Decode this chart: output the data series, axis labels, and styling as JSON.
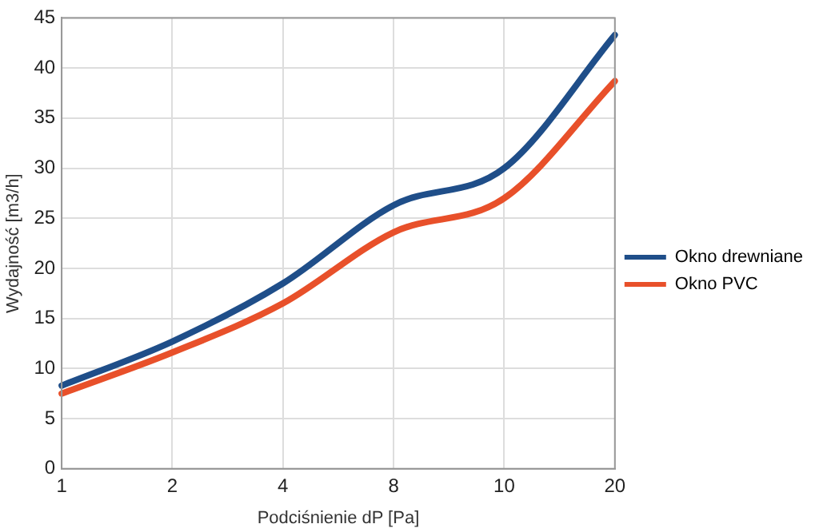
{
  "chart_data": {
    "type": "line",
    "xlabel": "Podciśnienie dP [Pa]",
    "ylabel": "Wydajność [m3/h]",
    "categories": [
      "1",
      "2",
      "4",
      "8",
      "10",
      "20"
    ],
    "series": [
      {
        "name": "Okno drewniane",
        "color": "#1f4e89",
        "values": [
          8.3,
          12.7,
          18.5,
          26.3,
          30,
          43.3
        ]
      },
      {
        "name": "Okno PVC",
        "color": "#e8502a",
        "values": [
          7.5,
          11.6,
          16.5,
          23.6,
          27,
          38.7
        ]
      }
    ],
    "ylim": [
      0,
      45
    ],
    "yticks": [
      0,
      5,
      10,
      15,
      20,
      25,
      30,
      35,
      40,
      45
    ],
    "grid": true,
    "legend": "right",
    "marker": "none",
    "line_style": "solid"
  }
}
